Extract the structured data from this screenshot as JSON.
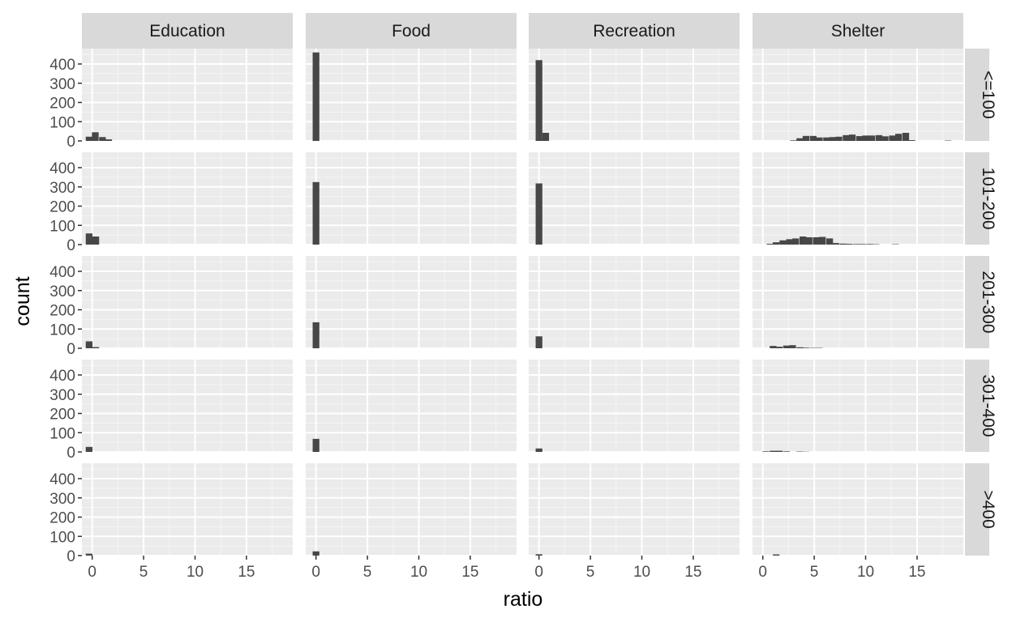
{
  "chart_data": {
    "type": "bar",
    "subtype": "faceted-histogram",
    "xlabel": "ratio",
    "ylabel": "count",
    "xlim": [
      -1,
      19.5
    ],
    "ylim": [
      0,
      480
    ],
    "x_ticks": [
      0,
      5,
      10,
      15
    ],
    "y_ticks": [
      0,
      100,
      200,
      300,
      400
    ],
    "bin_width": 0.65,
    "grid": true,
    "columns": [
      "Education",
      "Food",
      "Recreation",
      "Shelter"
    ],
    "rows": [
      "<=100",
      "101-200",
      "201-300",
      "301-400",
      ">400"
    ],
    "panels": [
      [
        {
          "bins": [
            [
              -0.3,
              22
            ],
            [
              0.3,
              45
            ],
            [
              1.0,
              20
            ],
            [
              1.6,
              8
            ]
          ]
        },
        {
          "bins": [
            [
              0,
              460
            ]
          ]
        },
        {
          "bins": [
            [
              0,
              420
            ],
            [
              0.65,
              42
            ]
          ]
        },
        {
          "bins": [
            [
              3.0,
              3
            ],
            [
              3.6,
              14
            ],
            [
              4.2,
              26
            ],
            [
              4.9,
              26
            ],
            [
              5.5,
              18
            ],
            [
              6.2,
              18
            ],
            [
              6.8,
              20
            ],
            [
              7.4,
              22
            ],
            [
              8.1,
              30
            ],
            [
              8.7,
              33
            ],
            [
              9.4,
              25
            ],
            [
              10.0,
              28
            ],
            [
              10.6,
              28
            ],
            [
              11.3,
              30
            ],
            [
              11.9,
              24
            ],
            [
              12.6,
              28
            ],
            [
              13.2,
              37
            ],
            [
              13.9,
              42
            ],
            [
              14.5,
              4
            ],
            [
              18.0,
              2
            ]
          ]
        }
      ],
      [
        {
          "bins": [
            [
              -0.3,
              58
            ],
            [
              0.35,
              42
            ]
          ]
        },
        {
          "bins": [
            [
              0,
              325
            ]
          ]
        },
        {
          "bins": [
            [
              0,
              318
            ]
          ]
        },
        {
          "bins": [
            [
              0.7,
              4
            ],
            [
              1.3,
              12
            ],
            [
              1.95,
              22
            ],
            [
              2.6,
              28
            ],
            [
              3.2,
              32
            ],
            [
              3.9,
              42
            ],
            [
              4.5,
              38
            ],
            [
              5.2,
              38
            ],
            [
              5.8,
              40
            ],
            [
              6.5,
              32
            ],
            [
              7.1,
              8
            ],
            [
              7.8,
              5
            ],
            [
              8.4,
              4
            ],
            [
              9.1,
              3
            ],
            [
              9.7,
              3
            ],
            [
              10.4,
              3
            ],
            [
              11.0,
              2
            ],
            [
              12.9,
              2
            ]
          ]
        }
      ],
      [
        {
          "bins": [
            [
              -0.3,
              36
            ],
            [
              0.35,
              6
            ]
          ]
        },
        {
          "bins": [
            [
              0,
              135
            ]
          ]
        },
        {
          "bins": [
            [
              0,
              62
            ]
          ]
        },
        {
          "bins": [
            [
              1.0,
              12
            ],
            [
              1.6,
              8
            ],
            [
              2.3,
              14
            ],
            [
              2.9,
              16
            ],
            [
              3.6,
              5
            ],
            [
              4.2,
              3
            ],
            [
              4.9,
              2
            ],
            [
              5.5,
              2
            ]
          ]
        }
      ],
      [
        {
          "bins": [
            [
              -0.3,
              26
            ]
          ]
        },
        {
          "bins": [
            [
              0,
              68
            ]
          ]
        },
        {
          "bins": [
            [
              0,
              18
            ]
          ]
        },
        {
          "bins": [
            [
              0.3,
              3
            ],
            [
              1.0,
              6
            ],
            [
              1.6,
              6
            ],
            [
              2.3,
              3
            ],
            [
              3.6,
              2
            ],
            [
              4.2,
              1
            ]
          ]
        }
      ],
      [
        {
          "bins": [
            [
              -0.3,
              10
            ]
          ]
        },
        {
          "bins": [
            [
              0,
              22
            ]
          ]
        },
        {
          "bins": [
            [
              0,
              7
            ]
          ]
        },
        {
          "bins": [
            [
              1.3,
              6
            ]
          ]
        }
      ]
    ]
  }
}
